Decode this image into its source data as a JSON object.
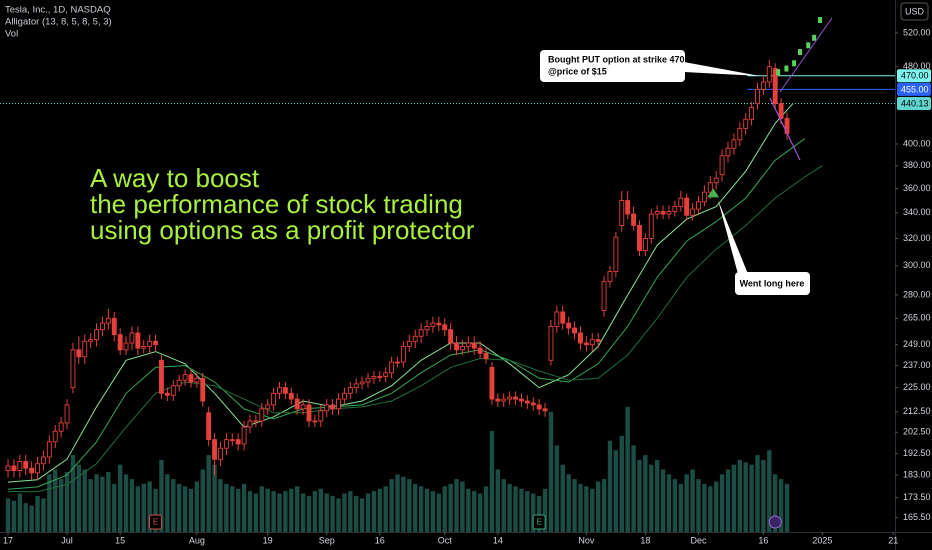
{
  "chart_data": {
    "type": "candlestick",
    "title": "Tesla, Inc., 1D, NASDAQ",
    "indicators": [
      "Alligator (13, 8, 5, 8, 5, 3)",
      "Vol"
    ],
    "currency": "USD",
    "log_scale": true,
    "xlim": [
      -1.36,
      150.3
    ],
    "ylim": [
      160,
      562
    ],
    "xticks": [
      {
        "value": 0,
        "label": "17"
      },
      {
        "value": 10,
        "label": "Jul"
      },
      {
        "value": 19,
        "label": "15"
      },
      {
        "value": 32,
        "label": "Aug"
      },
      {
        "value": 44,
        "label": "19"
      },
      {
        "value": 54,
        "label": "Sep"
      },
      {
        "value": 63,
        "label": "16"
      },
      {
        "value": 74,
        "label": "Oct"
      },
      {
        "value": 83,
        "label": "14"
      },
      {
        "value": 98,
        "label": "Nov"
      },
      {
        "value": 108,
        "label": "18"
      },
      {
        "value": 117,
        "label": "Dec"
      },
      {
        "value": 128,
        "label": "16"
      },
      {
        "value": 138,
        "label": "2025"
      },
      {
        "value": 150,
        "label": "21"
      }
    ],
    "yticks": [
      {
        "value": 520,
        "label": "520.00"
      },
      {
        "value": 480,
        "label": "480.00"
      },
      {
        "value": 400,
        "label": "400.00"
      },
      {
        "value": 380,
        "label": "380.00"
      },
      {
        "value": 360,
        "label": "360.00"
      },
      {
        "value": 340,
        "label": "340.00"
      },
      {
        "value": 320,
        "label": "320.00"
      },
      {
        "value": 300,
        "label": "300.00"
      },
      {
        "value": 280,
        "label": "280.00"
      },
      {
        "value": 265,
        "label": "265.00"
      },
      {
        "value": 249,
        "label": "249.00"
      },
      {
        "value": 237,
        "label": "237.00"
      },
      {
        "value": 225,
        "label": "225.00"
      },
      {
        "value": 212.5,
        "label": "212.50"
      },
      {
        "value": 202.5,
        "label": "202.50"
      },
      {
        "value": 192.5,
        "label": "192.50"
      },
      {
        "value": 183,
        "label": "183.00"
      },
      {
        "value": 173.5,
        "label": "173.50"
      },
      {
        "value": 165.5,
        "label": "165.50"
      }
    ],
    "candles": {
      "color": "#e5403c",
      "open": [
        185,
        187,
        185,
        189,
        186,
        184,
        188,
        191,
        198,
        203,
        207,
        225,
        246,
        242,
        251,
        252,
        258,
        262,
        265,
        255,
        246,
        250,
        256,
        247,
        248,
        251,
        240,
        222,
        221,
        226,
        229,
        232,
        228,
        230,
        212,
        199,
        190,
        195,
        199,
        199,
        197,
        205,
        208,
        208,
        214,
        216,
        222,
        225,
        222,
        219,
        214,
        216,
        208,
        208,
        213,
        216,
        214,
        219,
        222,
        225,
        227,
        228,
        230,
        231,
        231,
        233,
        239,
        239,
        248,
        251,
        254,
        258,
        260,
        262,
        261,
        258,
        250,
        246,
        248,
        250,
        247,
        244,
        236,
        219,
        218,
        219,
        220,
        219,
        218,
        217,
        216,
        214,
        240,
        260,
        269,
        262,
        259,
        256,
        250,
        249,
        252,
        270,
        289,
        296,
        330,
        350,
        339,
        330,
        311,
        320,
        339,
        341,
        339,
        341,
        345,
        352,
        338,
        343,
        349,
        357,
        365,
        372,
        389,
        396,
        404,
        415,
        424,
        440,
        455,
        463,
        478,
        440,
        425
      ],
      "high": [
        190,
        190,
        192,
        192,
        189,
        191,
        194,
        201,
        206,
        210,
        219,
        250,
        254,
        255,
        256,
        262,
        266,
        271,
        269,
        259,
        254,
        260,
        260,
        252,
        255,
        255,
        243,
        225,
        229,
        232,
        235,
        235,
        233,
        233,
        215,
        202,
        198,
        202,
        202,
        202,
        208,
        211,
        211,
        217,
        219,
        225,
        228,
        228,
        225,
        222,
        219,
        219,
        211,
        216,
        219,
        219,
        222,
        225,
        228,
        230,
        231,
        233,
        234,
        234,
        236,
        242,
        242,
        251,
        255,
        258,
        262,
        264,
        266,
        266,
        265,
        262,
        254,
        252,
        254,
        254,
        251,
        248,
        239,
        222,
        222,
        223,
        223,
        222,
        221,
        220,
        219,
        217,
        264,
        273,
        273,
        266,
        263,
        260,
        254,
        256,
        256,
        293,
        300,
        325,
        358,
        358,
        345,
        334,
        324,
        343,
        346,
        346,
        346,
        350,
        358,
        356,
        348,
        354,
        363,
        371,
        375,
        395,
        402,
        410,
        421,
        430,
        442,
        462,
        470,
        488,
        484,
        446,
        431
      ],
      "low": [
        182,
        182,
        182,
        183,
        181,
        181,
        185,
        188,
        195,
        200,
        204,
        222,
        238,
        238,
        247,
        248,
        254,
        258,
        251,
        243,
        243,
        246,
        243,
        244,
        244,
        245,
        219,
        218,
        218,
        223,
        226,
        225,
        225,
        215,
        196,
        183,
        187,
        192,
        196,
        194,
        194,
        202,
        205,
        205,
        211,
        213,
        219,
        219,
        216,
        211,
        211,
        205,
        205,
        205,
        210,
        211,
        211,
        216,
        219,
        222,
        224,
        225,
        227,
        228,
        228,
        230,
        236,
        236,
        245,
        247,
        250,
        254,
        256,
        257,
        254,
        246,
        243,
        243,
        244,
        243,
        241,
        238,
        216,
        215,
        215,
        216,
        216,
        215,
        214,
        213,
        211,
        210,
        237,
        256,
        258,
        255,
        252,
        246,
        245,
        245,
        247,
        266,
        285,
        292,
        325,
        335,
        326,
        307,
        307,
        316,
        335,
        335,
        335,
        337,
        341,
        334,
        334,
        339,
        345,
        351,
        359,
        366,
        383,
        390,
        398,
        409,
        418,
        434,
        449,
        457,
        434,
        419,
        404
      ],
      "close": [
        187,
        185,
        189,
        186,
        184,
        188,
        191,
        198,
        203,
        207,
        216,
        246,
        242,
        251,
        252,
        258,
        262,
        265,
        255,
        246,
        250,
        256,
        247,
        248,
        251,
        249,
        222,
        221,
        226,
        229,
        232,
        228,
        230,
        218,
        199,
        190,
        195,
        199,
        199,
        197,
        205,
        208,
        208,
        214,
        216,
        222,
        225,
        222,
        219,
        214,
        216,
        208,
        208,
        213,
        216,
        214,
        219,
        222,
        225,
        227,
        228,
        230,
        231,
        231,
        233,
        239,
        239,
        248,
        251,
        254,
        258,
        260,
        262,
        261,
        258,
        250,
        246,
        248,
        250,
        247,
        244,
        241,
        219,
        218,
        219,
        220,
        219,
        218,
        217,
        216,
        214,
        213,
        260,
        269,
        262,
        259,
        256,
        250,
        249,
        252,
        251,
        289,
        296,
        321,
        350,
        339,
        330,
        311,
        320,
        339,
        341,
        339,
        341,
        345,
        352,
        338,
        343,
        349,
        357,
        365,
        369,
        389,
        396,
        404,
        415,
        424,
        436,
        455,
        463,
        480,
        440,
        425,
        410
      ]
    },
    "volume": {
      "color": "#1b4d45",
      "values": [
        70,
        65,
        80,
        60,
        55,
        75,
        70,
        120,
        130,
        110,
        125,
        160,
        140,
        130,
        110,
        120,
        115,
        125,
        100,
        140,
        120,
        110,
        95,
        100,
        105,
        90,
        150,
        120,
        110,
        100,
        95,
        90,
        105,
        130,
        160,
        140,
        110,
        100,
        95,
        90,
        100,
        85,
        80,
        95,
        90,
        85,
        80,
        85,
        90,
        95,
        80,
        75,
        85,
        90,
        80,
        75,
        70,
        80,
        85,
        75,
        70,
        80,
        85,
        90,
        95,
        110,
        120,
        115,
        110,
        100,
        95,
        90,
        85,
        80,
        95,
        100,
        110,
        105,
        90,
        85,
        80,
        95,
        210,
        130,
        110,
        100,
        95,
        90,
        85,
        80,
        75,
        90,
        250,
        180,
        140,
        120,
        110,
        100,
        95,
        90,
        105,
        110,
        190,
        170,
        200,
        260,
        180,
        150,
        160,
        140,
        150,
        130,
        120,
        110,
        100,
        120,
        130,
        110,
        100,
        95,
        105,
        120,
        130,
        140,
        150,
        145,
        140,
        160,
        150,
        170,
        120,
        110,
        100
      ]
    },
    "lines": [
      {
        "color": "#86e694",
        "x": [
          0,
          5,
          10,
          15,
          20,
          25,
          30,
          35,
          40,
          45,
          50,
          55,
          60,
          65,
          70,
          75,
          80,
          85,
          90,
          95,
          100,
          105,
          110,
          115,
          120,
          125,
          130,
          133
        ],
        "values": [
          180,
          181,
          190,
          215,
          240,
          245,
          238,
          222,
          205,
          210,
          218,
          215,
          218,
          226,
          240,
          250,
          250,
          238,
          225,
          232,
          248,
          280,
          315,
          335,
          345,
          375,
          420,
          440
        ]
      },
      {
        "color": "#34a853",
        "x": [
          0,
          5,
          10,
          15,
          20,
          25,
          30,
          35,
          40,
          45,
          50,
          55,
          60,
          65,
          70,
          75,
          80,
          85,
          90,
          95,
          100,
          105,
          110,
          115,
          120,
          125,
          130,
          135
        ],
        "values": [
          177,
          178,
          183,
          198,
          222,
          236,
          237,
          228,
          214,
          209,
          214,
          215,
          216,
          222,
          233,
          243,
          246,
          240,
          230,
          228,
          238,
          260,
          292,
          318,
          333,
          352,
          385,
          405
        ]
      },
      {
        "color": "#1f6e3b",
        "x": [
          0,
          5,
          10,
          15,
          20,
          25,
          30,
          35,
          40,
          45,
          50,
          55,
          60,
          65,
          70,
          75,
          80,
          85,
          90,
          95,
          100,
          105,
          110,
          115,
          120,
          125,
          130,
          135,
          138
        ],
        "values": [
          176,
          176,
          179,
          188,
          205,
          222,
          228,
          226,
          219,
          212,
          212,
          214,
          215,
          218,
          226,
          236,
          241,
          240,
          234,
          229,
          230,
          243,
          265,
          292,
          312,
          330,
          352,
          370,
          380
        ]
      }
    ],
    "levels": [
      {
        "value": 470,
        "label": "470.00",
        "color": "#7ff5f0",
        "style": "solid"
      },
      {
        "value": 455,
        "label": "455.00",
        "color": "#2962ff",
        "style": "solid"
      },
      {
        "value": 440.13,
        "label": "440.13",
        "color": "#5fd6d0",
        "style": "dotted"
      }
    ],
    "projection": {
      "color": "#5bd35b",
      "x": [
        130.5,
        131.9,
        133.2,
        134.2,
        135.6,
        136.6,
        137.6
      ],
      "values": [
        474,
        478,
        484,
        497,
        505,
        514,
        536
      ]
    },
    "long_signal": {
      "x": 119.5,
      "value": 356,
      "color": "#4caf50"
    },
    "events": [
      {
        "x": 25,
        "label": "E"
      },
      {
        "x": 90,
        "label": "E"
      },
      {
        "x": 130
      }
    ],
    "headline": [
      "A way to boost",
      "the performance of stock trading",
      "using options as a profit protector"
    ],
    "put_note": [
      "Bought PUT option at strike 470",
      "@price of $15"
    ],
    "long_note": "Went long here"
  }
}
